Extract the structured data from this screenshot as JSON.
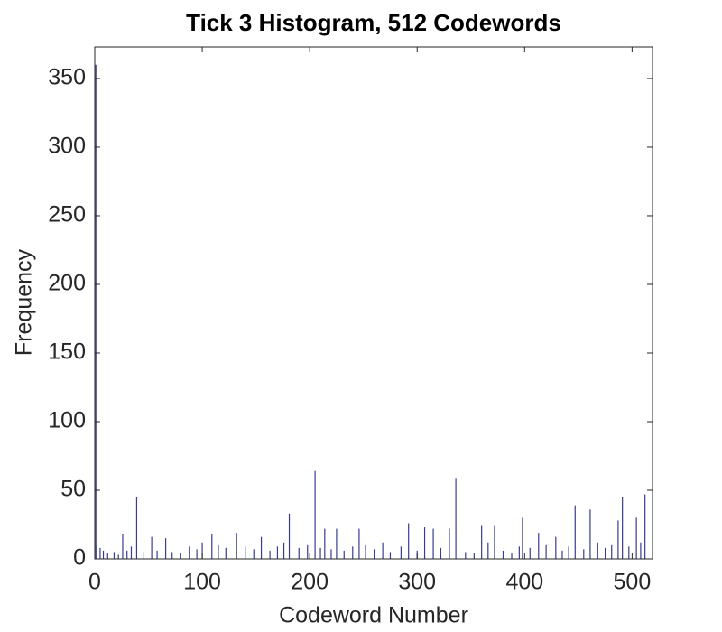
{
  "chart_data": {
    "type": "bar",
    "title": "Tick 3 Histogram, 512 Codewords",
    "x_label": "Codeword Number",
    "y_label": "Frequency",
    "x": [
      1,
      2,
      5,
      8,
      12,
      18,
      22,
      26,
      30,
      34,
      39,
      45,
      53,
      58,
      66,
      72,
      80,
      88,
      95,
      100,
      109,
      115,
      122,
      132,
      140,
      148,
      155,
      163,
      170,
      176,
      181,
      190,
      198,
      205,
      210,
      214,
      220,
      225,
      232,
      240,
      246,
      252,
      260,
      268,
      275,
      285,
      292,
      300,
      307,
      315,
      322,
      330,
      336,
      345,
      353,
      360,
      366,
      372,
      380,
      388,
      395,
      398,
      405,
      413,
      420,
      429,
      435,
      441,
      447,
      455,
      461,
      468,
      475,
      481,
      487,
      491,
      497,
      504,
      508,
      512
    ],
    "values": [
      360,
      10,
      8,
      6,
      4,
      5,
      3,
      18,
      6,
      9,
      45,
      5,
      16,
      6,
      15,
      5,
      4,
      9,
      7,
      12,
      18,
      10,
      8,
      19,
      9,
      7,
      16,
      6,
      9,
      12,
      33,
      8,
      10,
      64,
      8,
      22,
      7,
      22,
      6,
      9,
      22,
      10,
      7,
      12,
      5,
      9,
      26,
      6,
      23,
      22,
      8,
      22,
      59,
      5,
      4,
      24,
      12,
      24,
      6,
      4,
      9,
      30,
      8,
      19,
      10,
      16,
      6,
      9,
      39,
      7,
      36,
      12,
      8,
      10,
      28,
      45,
      9,
      30,
      12,
      47
    ],
    "color": "#3b3b8f",
    "xlim": [
      0,
      519
    ],
    "xticks": [
      0,
      100,
      200,
      300,
      400,
      500
    ],
    "ylim": [
      0,
      373
    ],
    "yticks": [
      0,
      50,
      100,
      150,
      200,
      250,
      300,
      350
    ],
    "grid": false
  }
}
